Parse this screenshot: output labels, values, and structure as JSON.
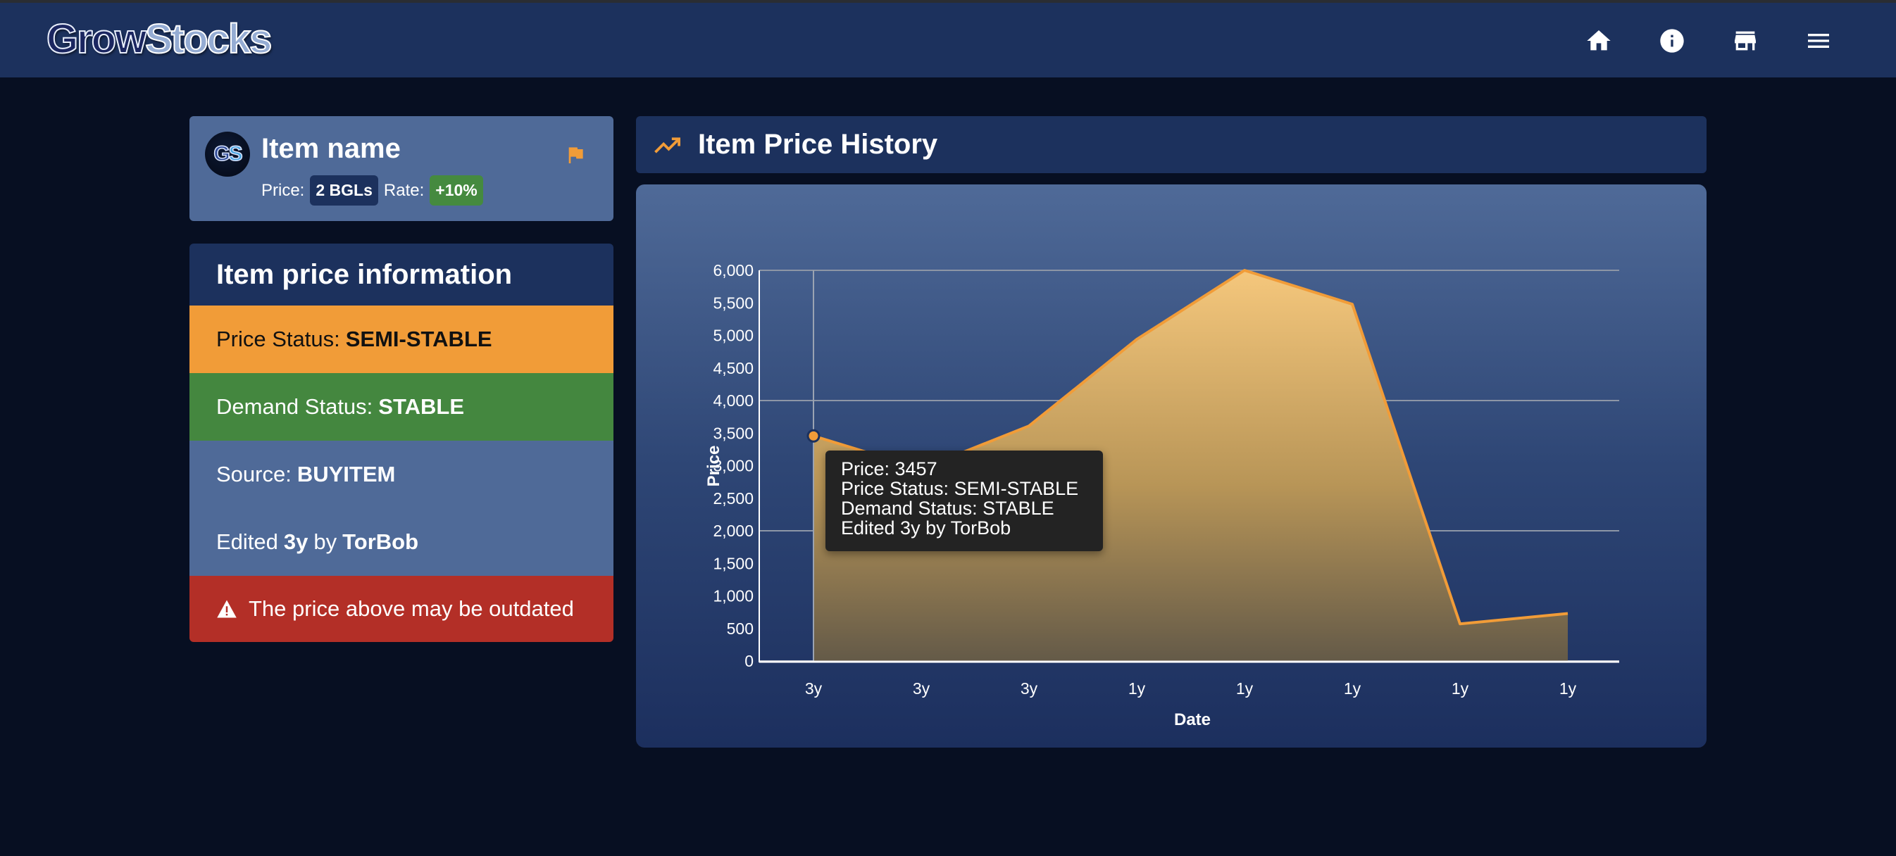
{
  "navbar": {
    "brand_part1": "Grow",
    "brand_part2": "Stocks",
    "icons": [
      "home-icon",
      "info-icon",
      "store-icon",
      "menu-icon"
    ]
  },
  "item": {
    "avatar_text_1": "G",
    "avatar_text_2": "S",
    "name": "Item name",
    "price_label": "Price:",
    "price_value": "2 BGLs",
    "rate_label": "Rate:",
    "rate_value": "+10%",
    "flag_icon": "flag-icon"
  },
  "info": {
    "title": "Item price information",
    "price_status_label": "Price Status:",
    "price_status_value": "SEMI-STABLE",
    "demand_status_label": "Demand Status:",
    "demand_status_value": "STABLE",
    "source_label": "Source:",
    "source_value": "BUYITEM",
    "edited_prefix": "Edited",
    "edited_time": "3y",
    "edited_by": "by",
    "edited_user": "TorBob",
    "warning": "The price above may be outdated"
  },
  "chart_header": {
    "title": "Item Price History",
    "icon": "trending-up-icon"
  },
  "tooltip": {
    "line1": "Price: 3457",
    "line2": "Price Status: SEMI-STABLE",
    "line3": "Demand Status: STABLE",
    "line4": "Edited 3y by TorBob"
  },
  "colors": {
    "navbar": "#1c315d",
    "background": "#070f22",
    "card": "#4f6a98",
    "semi_stable": "#f19c38",
    "stable": "#44873f",
    "warning": "#b32f27",
    "line": "#f19c38"
  },
  "chart_data": {
    "type": "area",
    "title": "Item Price History",
    "xlabel": "Date",
    "ylabel": "Price",
    "categories": [
      "3y",
      "3y",
      "3y",
      "1y",
      "1y",
      "1y",
      "1y",
      "1y"
    ],
    "series": [
      {
        "name": "Price",
        "values": [
          3457,
          2950,
          3610,
          4940,
          6000,
          5480,
          570,
          730
        ]
      }
    ],
    "yticks": [
      "0",
      "500",
      "1,000",
      "1,500",
      "2,000",
      "2,500",
      "3,000",
      "3,500",
      "4,000",
      "4,500",
      "5,000",
      "5,500",
      "6,000"
    ],
    "ylim": [
      0,
      6000
    ],
    "grid_lines_at": [
      0,
      2000,
      4000,
      6000
    ],
    "legend": "none",
    "hovered_index": 0
  }
}
